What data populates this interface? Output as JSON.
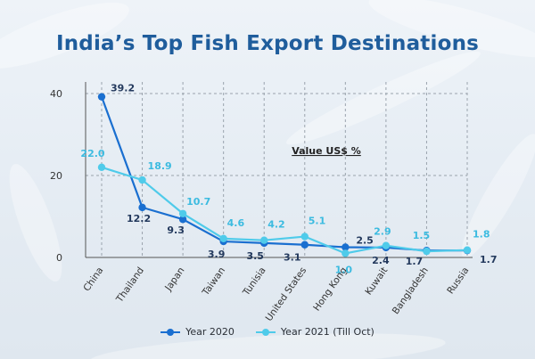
{
  "header": {
    "title": "India’s Top Fish Export Destinations"
  },
  "chart_data": {
    "type": "line",
    "title": "India’s Top Fish Export Destinations",
    "annotation": "Value US$ %",
    "categories": [
      "China",
      "Thailand",
      "Japan",
      "Taiwan",
      "Tunisia",
      "United States",
      "Hong Kong",
      "Kuwait",
      "Bangladesh",
      "Russia"
    ],
    "y_ticks": [
      0,
      20,
      40
    ],
    "ylim": [
      0,
      42
    ],
    "grid": true,
    "legend_position": "bottom",
    "series": [
      {
        "name": "Year 2020",
        "color": "#1a6fd0",
        "values": [
          39.2,
          12.2,
          9.3,
          3.9,
          3.5,
          3.1,
          2.5,
          2.4,
          1.7,
          1.7
        ],
        "labels": [
          "39.2",
          "12.2",
          "9.3",
          "3.9",
          "3.5",
          "3.1",
          "2.5",
          "2.4",
          "1.7",
          "1.7"
        ]
      },
      {
        "name": "Year 2021 (Till Oct)",
        "color": "#4fcbea",
        "values": [
          22.0,
          18.9,
          10.7,
          4.6,
          4.2,
          5.1,
          1.0,
          2.9,
          1.5,
          1.8
        ],
        "labels": [
          "22.0",
          "18.9",
          "10.7",
          "4.6",
          "4.2",
          "5.1",
          "1.0",
          "2.9",
          "1.5",
          "1.8"
        ]
      }
    ]
  }
}
